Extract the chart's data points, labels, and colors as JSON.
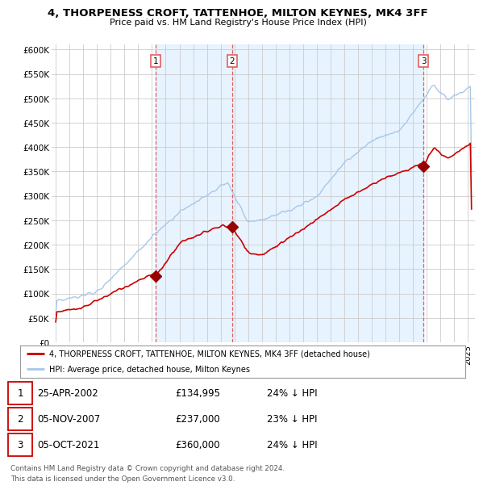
{
  "title": "4, THORPENESS CROFT, TATTENHOE, MILTON KEYNES, MK4 3FF",
  "subtitle": "Price paid vs. HM Land Registry's House Price Index (HPI)",
  "ylabel_ticks": [
    "£0",
    "£50K",
    "£100K",
    "£150K",
    "£200K",
    "£250K",
    "£300K",
    "£350K",
    "£400K",
    "£450K",
    "£500K",
    "£550K",
    "£600K"
  ],
  "ytick_values": [
    0,
    50000,
    100000,
    150000,
    200000,
    250000,
    300000,
    350000,
    400000,
    450000,
    500000,
    550000,
    600000
  ],
  "xlim_start": 1994.7,
  "xlim_end": 2025.5,
  "ylim_min": 0,
  "ylim_max": 610000,
  "sale_dates": [
    2002.29,
    2007.84,
    2021.76
  ],
  "sale_prices": [
    134995,
    237000,
    360000
  ],
  "sale_labels": [
    "1",
    "2",
    "3"
  ],
  "sale_date_strs": [
    "25-APR-2002",
    "05-NOV-2007",
    "05-OCT-2021"
  ],
  "sale_price_strs": [
    "£134,995",
    "£237,000",
    "£360,000"
  ],
  "sale_hpi_strs": [
    "24% ↓ HPI",
    "23% ↓ HPI",
    "24% ↓ HPI"
  ],
  "legend_line1": "4, THORPENESS CROFT, TATTENHOE, MILTON KEYNES, MK4 3FF (detached house)",
  "legend_line2": "HPI: Average price, detached house, Milton Keynes",
  "footer1": "Contains HM Land Registry data © Crown copyright and database right 2024.",
  "footer2": "This data is licensed under the Open Government Licence v3.0.",
  "hpi_color": "#a8c8e8",
  "price_color": "#cc0000",
  "vline_color": "#e06060",
  "background_color": "#ffffff",
  "plot_bg_color": "#ffffff",
  "shade_color": "#ddeeff"
}
